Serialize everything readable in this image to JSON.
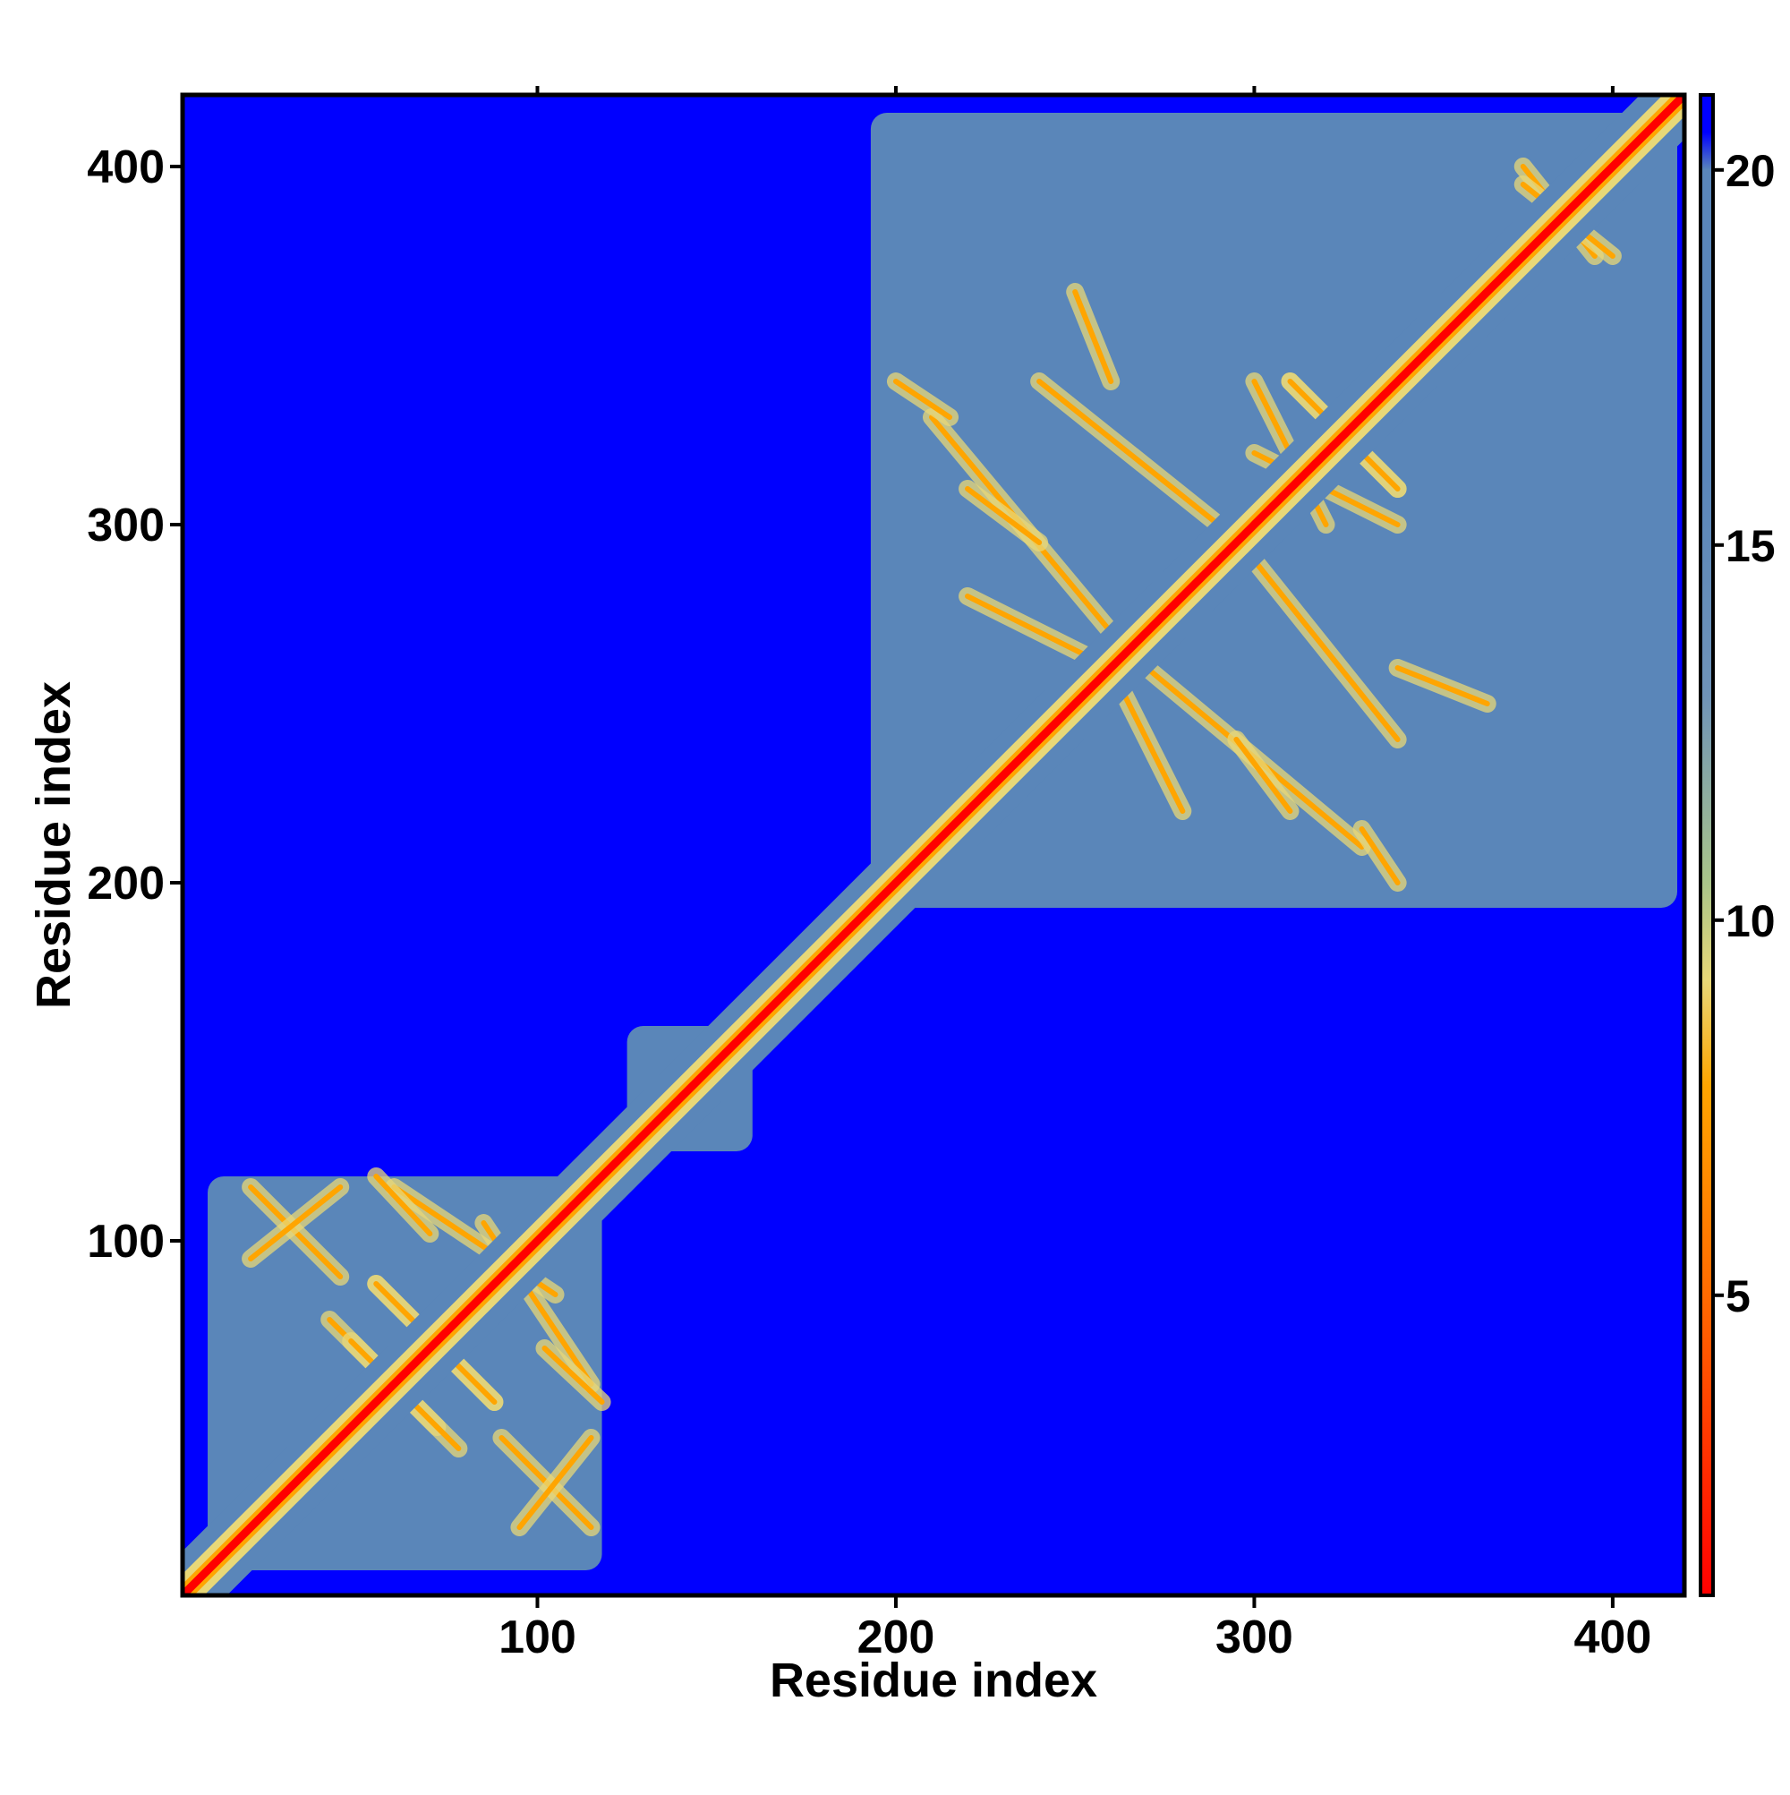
{
  "chart_data": {
    "type": "heatmap",
    "title": "",
    "xlabel": "Residue index",
    "ylabel": "Residue index",
    "xlim": [
      1,
      420
    ],
    "ylim": [
      1,
      420
    ],
    "x_ticks": [
      100,
      200,
      300,
      400
    ],
    "y_ticks": [
      100,
      200,
      300,
      400
    ],
    "x_tick_labels": [
      "100",
      "200",
      "300",
      "400"
    ],
    "y_tick_labels": [
      "100",
      "200",
      "300",
      "400"
    ],
    "colorbar": {
      "range": [
        1,
        21
      ],
      "ticks": [
        5,
        10,
        15,
        20
      ],
      "tick_labels": [
        "5",
        "10",
        "15",
        "20"
      ],
      "stops": [
        {
          "value": 1,
          "color": "#ff0000"
        },
        {
          "value": 5,
          "color": "#ff6a00"
        },
        {
          "value": 7.8,
          "color": "#ffa500"
        },
        {
          "value": 9.2,
          "color": "#e8d878"
        },
        {
          "value": 10.5,
          "color": "#a9c48a"
        },
        {
          "value": 13,
          "color": "#6f93b8"
        },
        {
          "value": 16,
          "color": "#5a86b9"
        },
        {
          "value": 20,
          "color": "#5a86b9"
        },
        {
          "value": 20.5,
          "color": "#0000ff"
        },
        {
          "value": 21,
          "color": "#0000ff"
        }
      ]
    },
    "background_color": "#0000ff",
    "domain_blocks": [
      {
        "x_range": [
          8,
          118
        ],
        "y_range": [
          8,
          118
        ],
        "color": "#5a86b9"
      },
      {
        "x_range": [
          193,
          418
        ],
        "y_range": [
          193,
          415
        ],
        "color": "#5a86b9"
      },
      {
        "x_range": [
          125,
          160
        ],
        "y_range": [
          125,
          160
        ],
        "color": "#5a86b9"
      }
    ],
    "diagonal_color": "#ff0000",
    "contact_bands": [
      {
        "x": [
          20,
          45
        ],
        "y": [
          115,
          90
        ],
        "color": "#ffa500"
      },
      {
        "x": [
          60,
          105
        ],
        "y": [
          115,
          85
        ],
        "color": "#ffa500"
      },
      {
        "x": [
          42,
          72
        ],
        "y": [
          78,
          48
        ],
        "color": "#ffa500"
      },
      {
        "x": [
          55,
          88
        ],
        "y": [
          88,
          55
        ],
        "color": "#ffa500"
      },
      {
        "x": [
          95,
          115
        ],
        "y": [
          20,
          45
        ],
        "color": "#ffa500"
      },
      {
        "x": [
          102,
          118
        ],
        "y": [
          70,
          55
        ],
        "color": "#ffa500"
      },
      {
        "x": [
          270,
          330
        ],
        "y": [
          260,
          210
        ],
        "color": "#ffa500"
      },
      {
        "x": [
          240,
          290
        ],
        "y": [
          340,
          300
        ],
        "color": "#ffa500"
      },
      {
        "x": [
          310,
          340
        ],
        "y": [
          340,
          310
        ],
        "color": "#ffa500"
      },
      {
        "x": [
          375,
          395
        ],
        "y": [
          400,
          375
        ],
        "color": "#ffa500"
      },
      {
        "x": [
          340,
          365
        ],
        "y": [
          260,
          250
        ],
        "color": "#ffa500"
      },
      {
        "x": [
          220,
          260
        ],
        "y": [
          280,
          260
        ],
        "color": "#ffa500"
      },
      {
        "x": [
          300,
          340
        ],
        "y": [
          320,
          300
        ],
        "color": "#ffa500"
      },
      {
        "x": [
          200,
          215
        ],
        "y": [
          340,
          330
        ],
        "color": "#ffa500"
      },
      {
        "x": [
          220,
          240
        ],
        "y": [
          310,
          295
        ],
        "color": "#ffa500"
      }
    ],
    "legend": "colorbar-right",
    "grid": false
  }
}
